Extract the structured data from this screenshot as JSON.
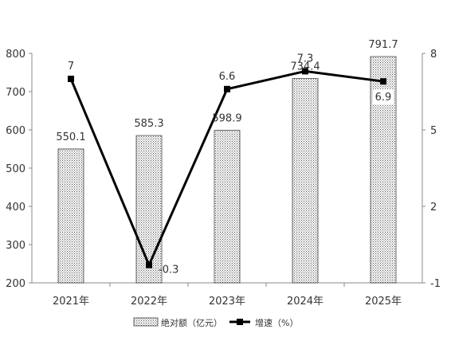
{
  "chart_data": {
    "type": "bar",
    "categories": [
      "2021年",
      "2022年",
      "2023年",
      "2024年",
      "2025年"
    ],
    "series": [
      {
        "name": "绝对额（亿元）",
        "type": "bar",
        "axis": "left",
        "values": [
          550.1,
          585.3,
          598.9,
          734.4,
          791.7
        ],
        "labels": [
          "550.1",
          "585.3",
          "598.9",
          "734.4",
          "791.7"
        ]
      },
      {
        "name": "增速（%）",
        "type": "line",
        "axis": "right",
        "values": [
          7,
          -0.3,
          6.6,
          7.3,
          6.9
        ],
        "labels": [
          "7",
          "-0.3",
          "6.6",
          "7.3",
          "6.9"
        ]
      }
    ],
    "y_left": {
      "min": 200,
      "max": 800,
      "ticks": [
        "200",
        "300",
        "400",
        "500",
        "600",
        "700",
        "800"
      ]
    },
    "y_right": {
      "min": -1,
      "max": 8,
      "ticks": [
        "-1",
        "2",
        "5",
        "8"
      ]
    },
    "legend_position": "bottom",
    "grid": false,
    "colors": {
      "bar_pattern": "#555555",
      "bar_border": "#444444",
      "line": "#000000",
      "axis": "#888888"
    }
  }
}
